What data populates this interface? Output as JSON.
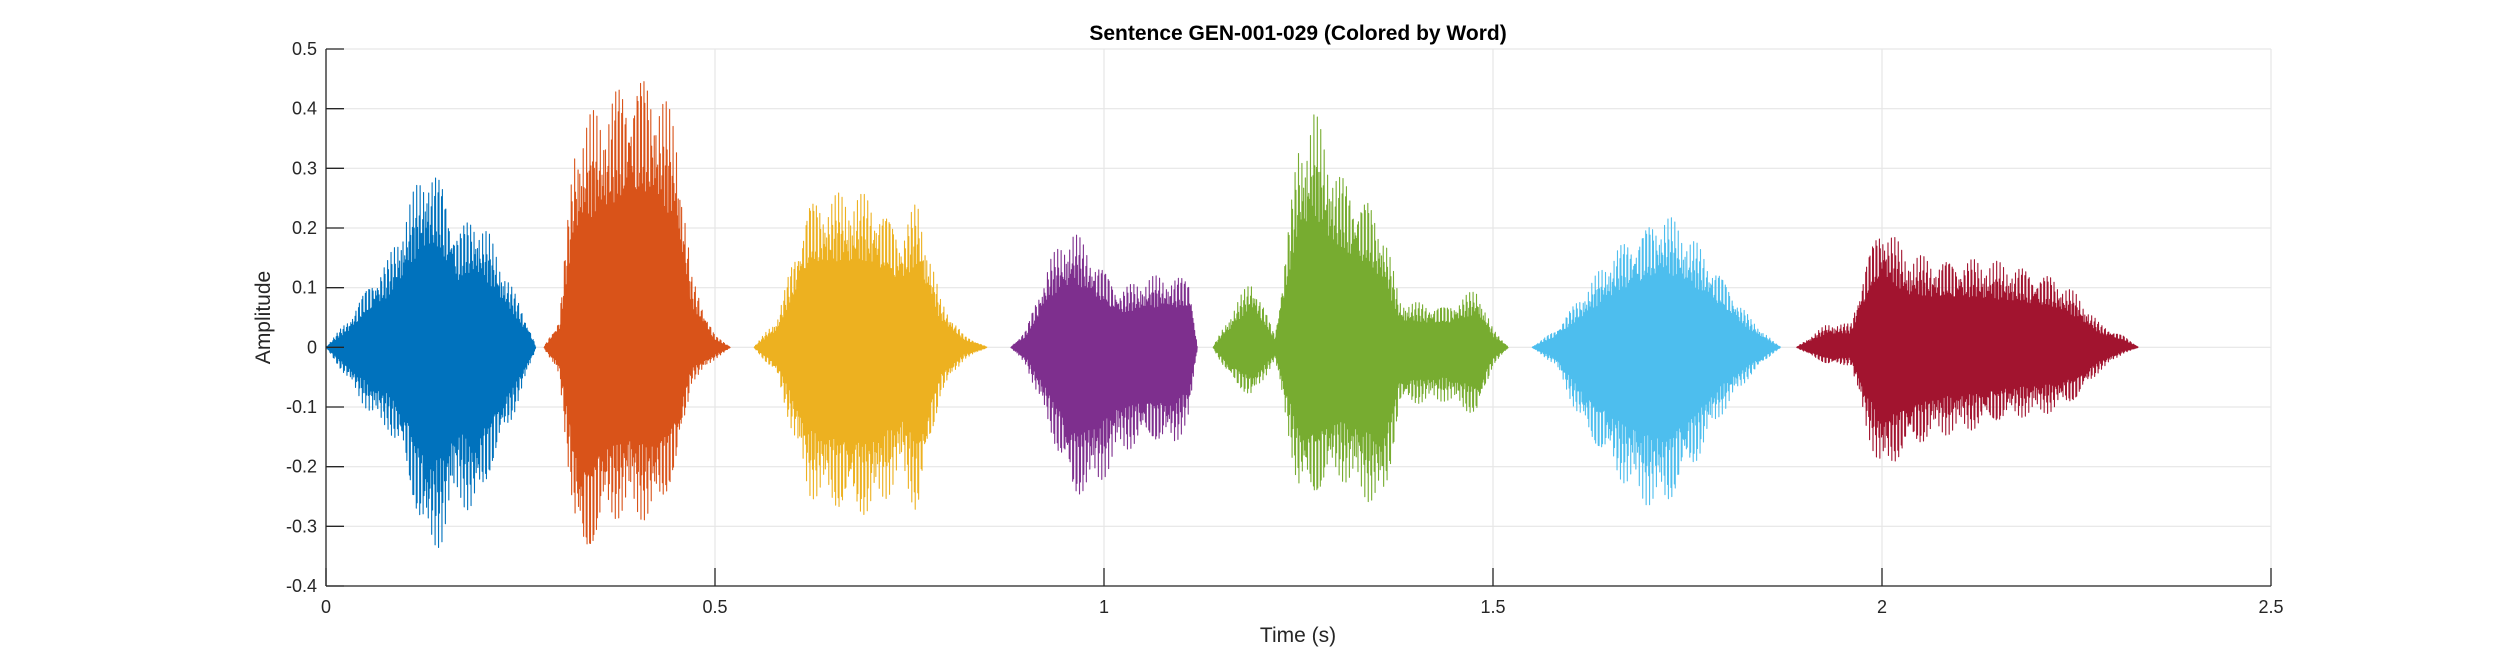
{
  "chart_data": {
    "type": "line",
    "title": "Sentence GEN-001-029 (Colored by Word)",
    "xlabel": "Time (s)",
    "ylabel": "Amplitude",
    "xlim": [
      0,
      2.5
    ],
    "ylim": [
      -0.4,
      0.5
    ],
    "x_ticks": [
      0,
      0.5,
      1,
      1.5,
      2,
      2.5
    ],
    "x_tick_labels": [
      "0",
      "0.5",
      "1",
      "1.5",
      "2",
      "2.5"
    ],
    "y_ticks": [
      -0.4,
      -0.3,
      -0.2,
      -0.1,
      0,
      0.1,
      0.2,
      0.3,
      0.4,
      0.5
    ],
    "y_tick_labels": [
      "-0.4",
      "-0.3",
      "-0.2",
      "-0.1",
      "0",
      "0.1",
      "0.2",
      "0.3",
      "0.4",
      "0.5"
    ],
    "grid": true,
    "series": [
      {
        "color": "#0072BD",
        "envelope": [
          [
            0.0,
            0.0,
            0.0
          ],
          [
            0.03,
            0.05,
            -0.06
          ],
          [
            0.06,
            0.12,
            -0.12
          ],
          [
            0.08,
            0.15,
            -0.14
          ],
          [
            0.1,
            0.22,
            -0.2
          ],
          [
            0.13,
            0.32,
            -0.36
          ],
          [
            0.15,
            0.28,
            -0.33
          ],
          [
            0.17,
            0.2,
            -0.25
          ],
          [
            0.19,
            0.23,
            -0.3
          ],
          [
            0.21,
            0.19,
            -0.22
          ],
          [
            0.24,
            0.1,
            -0.12
          ],
          [
            0.26,
            0.04,
            -0.04
          ],
          [
            0.27,
            0.0,
            0.0
          ]
        ]
      },
      {
        "color": "#D95319",
        "envelope": [
          [
            0.28,
            0.0,
            0.0
          ],
          [
            0.3,
            0.05,
            -0.05
          ],
          [
            0.32,
            0.36,
            -0.32
          ],
          [
            0.33,
            0.38,
            -0.38
          ],
          [
            0.36,
            0.42,
            -0.3
          ],
          [
            0.39,
            0.47,
            -0.28
          ],
          [
            0.42,
            0.46,
            -0.3
          ],
          [
            0.45,
            0.38,
            -0.22
          ],
          [
            0.47,
            0.12,
            -0.06
          ],
          [
            0.5,
            0.02,
            -0.02
          ],
          [
            0.52,
            0.0,
            0.0
          ]
        ]
      },
      {
        "color": "#EDB120",
        "envelope": [
          [
            0.55,
            0.0,
            0.0
          ],
          [
            0.58,
            0.05,
            -0.05
          ],
          [
            0.62,
            0.25,
            -0.25
          ],
          [
            0.66,
            0.26,
            -0.28
          ],
          [
            0.7,
            0.26,
            -0.29
          ],
          [
            0.74,
            0.2,
            -0.22
          ],
          [
            0.76,
            0.25,
            -0.29
          ],
          [
            0.79,
            0.08,
            -0.08
          ],
          [
            0.82,
            0.02,
            -0.02
          ],
          [
            0.85,
            0.0,
            0.0
          ]
        ]
      },
      {
        "color": "#7E2F8E",
        "envelope": [
          [
            0.88,
            0.0,
            0.0
          ],
          [
            0.9,
            0.03,
            -0.03
          ],
          [
            0.93,
            0.15,
            -0.14
          ],
          [
            0.96,
            0.2,
            -0.26
          ],
          [
            0.99,
            0.15,
            -0.24
          ],
          [
            1.02,
            0.1,
            -0.18
          ],
          [
            1.06,
            0.12,
            -0.16
          ],
          [
            1.09,
            0.12,
            -0.17
          ],
          [
            1.11,
            0.12,
            -0.12
          ],
          [
            1.12,
            0.0,
            0.0
          ]
        ]
      },
      {
        "color": "#77AC30",
        "envelope": [
          [
            1.14,
            0.0,
            0.0
          ],
          [
            1.16,
            0.05,
            -0.05
          ],
          [
            1.19,
            0.12,
            -0.09
          ],
          [
            1.22,
            0.02,
            -0.02
          ],
          [
            1.25,
            0.35,
            -0.25
          ],
          [
            1.27,
            0.4,
            -0.26
          ],
          [
            1.3,
            0.3,
            -0.22
          ],
          [
            1.34,
            0.25,
            -0.26
          ],
          [
            1.36,
            0.2,
            -0.28
          ],
          [
            1.38,
            0.08,
            -0.1
          ],
          [
            1.44,
            0.07,
            -0.09
          ],
          [
            1.48,
            0.1,
            -0.12
          ],
          [
            1.5,
            0.03,
            -0.03
          ],
          [
            1.52,
            0.0,
            0.0
          ]
        ]
      },
      {
        "color": "#4DBEEE",
        "envelope": [
          [
            1.55,
            0.0,
            0.0
          ],
          [
            1.58,
            0.03,
            -0.03
          ],
          [
            1.62,
            0.1,
            -0.15
          ],
          [
            1.66,
            0.17,
            -0.22
          ],
          [
            1.69,
            0.2,
            -0.26
          ],
          [
            1.72,
            0.23,
            -0.28
          ],
          [
            1.76,
            0.18,
            -0.2
          ],
          [
            1.79,
            0.13,
            -0.12
          ],
          [
            1.83,
            0.05,
            -0.05
          ],
          [
            1.86,
            0.01,
            -0.01
          ],
          [
            1.87,
            0.0,
            0.0
          ]
        ]
      },
      {
        "color": "#A2142F",
        "envelope": [
          [
            1.89,
            0.0,
            0.0
          ],
          [
            1.93,
            0.04,
            -0.03
          ],
          [
            1.96,
            0.04,
            -0.03
          ],
          [
            1.98,
            0.15,
            -0.14
          ],
          [
            2.0,
            0.22,
            -0.22
          ],
          [
            2.03,
            0.16,
            -0.18
          ],
          [
            2.07,
            0.15,
            -0.15
          ],
          [
            2.12,
            0.15,
            -0.14
          ],
          [
            2.17,
            0.14,
            -0.12
          ],
          [
            2.22,
            0.12,
            -0.11
          ],
          [
            2.25,
            0.09,
            -0.09
          ],
          [
            2.28,
            0.04,
            -0.04
          ],
          [
            2.31,
            0.02,
            -0.01
          ],
          [
            2.33,
            0.0,
            0.0
          ]
        ]
      }
    ]
  }
}
